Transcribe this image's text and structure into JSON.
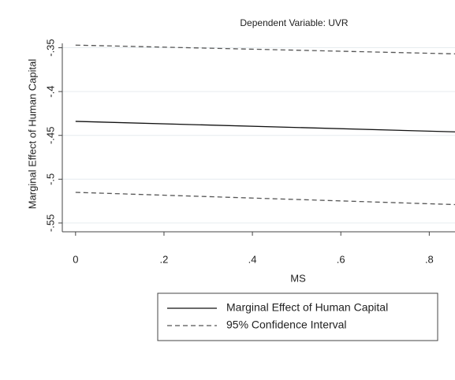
{
  "chart_data": {
    "type": "line",
    "subtitle": "Dependent Variable: UVR",
    "x_label": "MS",
    "y_label": "Marginal Effect of Human Capital",
    "x": [
      0,
      0.86
    ],
    "series": [
      {
        "name": "Marginal Effect of Human Capital",
        "color": "#111111",
        "dash": false,
        "values": [
          -0.434,
          -0.446
        ]
      },
      {
        "name": "95% Confidence Interval",
        "color": "#555555",
        "dash": true,
        "lower": [
          -0.515,
          -0.529
        ],
        "upper": [
          -0.347,
          -0.357
        ]
      }
    ],
    "xlim": [
      -0.03,
      0.86
    ],
    "xticks": [
      0,
      {
        "value": 0.2,
        "label": ".2"
      },
      {
        "value": 0.4,
        "label": ".4"
      },
      {
        "value": 0.6,
        "label": ".6"
      },
      {
        "value": 0.8,
        "label": ".8"
      }
    ],
    "ylim": [
      -0.56,
      -0.345
    ],
    "yticks": [
      {
        "value": -0.55,
        "label": "-.55"
      },
      {
        "value": -0.5,
        "label": "-.5"
      },
      {
        "value": -0.45,
        "label": "-.45"
      },
      {
        "value": -0.4,
        "label": "-.4"
      },
      {
        "value": -0.35,
        "label": "-.35"
      }
    ],
    "grid": true
  }
}
